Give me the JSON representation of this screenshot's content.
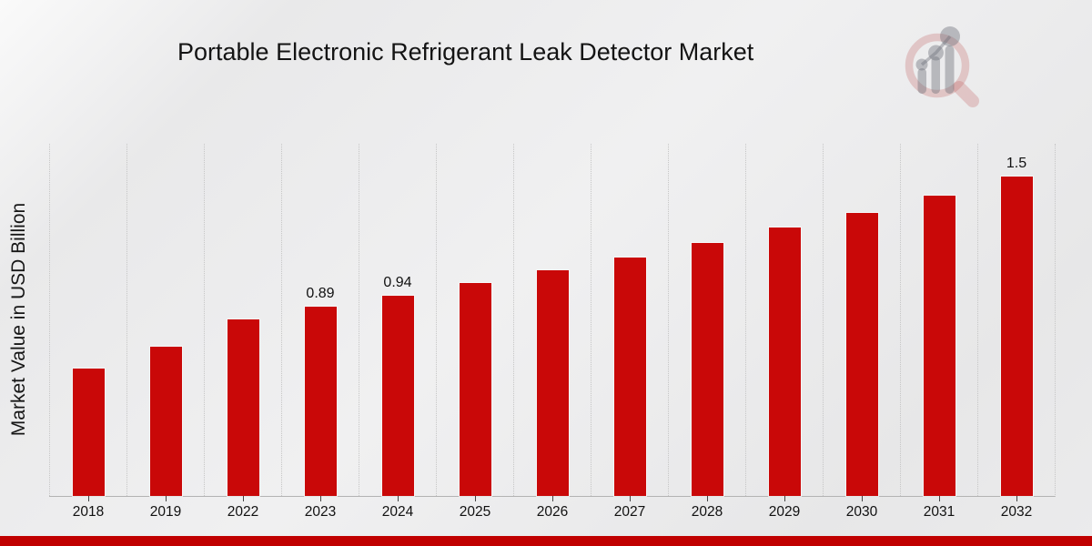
{
  "header": {
    "title": "Portable Electronic Refrigerant Leak Detector Market"
  },
  "logo": {
    "icon": "magnifier-bar-chart-watermark"
  },
  "chart_data": {
    "type": "bar",
    "title": "Portable Electronic Refrigerant Leak Detector Market",
    "xlabel": "",
    "ylabel": "Market Value in USD Billion",
    "categories": [
      "2018",
      "2019",
      "2022",
      "2023",
      "2024",
      "2025",
      "2026",
      "2027",
      "2028",
      "2029",
      "2030",
      "2031",
      "2032"
    ],
    "values": [
      0.6,
      0.7,
      0.83,
      0.89,
      0.94,
      1.0,
      1.06,
      1.12,
      1.19,
      1.26,
      1.33,
      1.41,
      1.5
    ],
    "bar_labels": [
      "",
      "",
      "",
      "0.89",
      "0.94",
      "",
      "",
      "",
      "",
      "",
      "",
      "",
      "1.5"
    ],
    "ylim": [
      0,
      1.655
    ],
    "bar_color": "#c90808",
    "grid": "vertical-dotted",
    "legend": "none"
  },
  "footer": {
    "accent_color": "#c00000"
  }
}
